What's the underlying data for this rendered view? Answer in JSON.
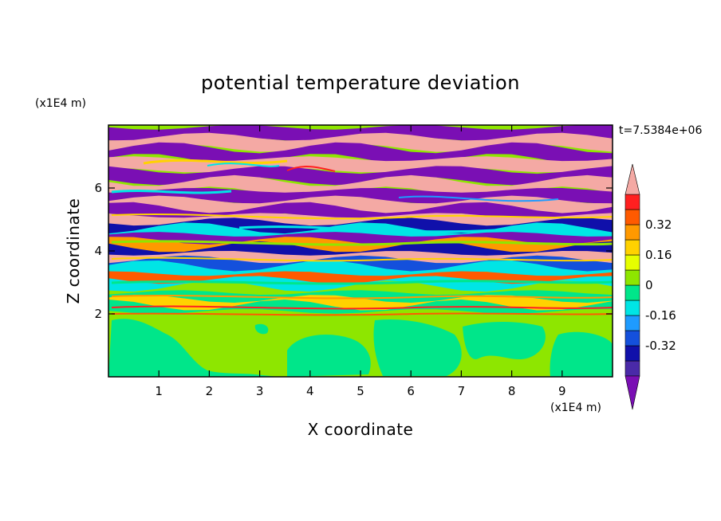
{
  "chart_data": {
    "type": "heatmap",
    "title": "potential temperature deviation",
    "xlabel": "X coordinate",
    "ylabel": "Z coordinate",
    "x_unit": "(x1E4 m)",
    "y_unit": "(x1E4 m)",
    "time_label": "t=7.5384e+06",
    "xlim": [
      0,
      10
    ],
    "ylim": [
      0,
      8
    ],
    "x_ticks": [
      "1",
      "2",
      "3",
      "4",
      "5",
      "6",
      "7",
      "8",
      "9"
    ],
    "y_ticks": [
      "2",
      "4",
      "6"
    ],
    "colorbar": {
      "levels": [
        -0.48,
        -0.4,
        -0.32,
        -0.24,
        -0.16,
        -0.08,
        0,
        0.08,
        0.16,
        0.24,
        0.32,
        0.4,
        0.48
      ],
      "labels": [
        "0.32",
        "0.16",
        "0",
        "-0.16",
        "-0.32"
      ],
      "label_values": [
        0.32,
        0.16,
        0,
        -0.16,
        -0.32
      ],
      "colors_low_to_high": [
        "#7a0fb4",
        "#4a2aa8",
        "#1010aa",
        "#1450dc",
        "#1e9bff",
        "#00e5e5",
        "#00e68a",
        "#8ee600",
        "#e6ff00",
        "#ffd200",
        "#ff9900",
        "#ff5a00",
        "#ff2020",
        "#f4a9a4"
      ]
    },
    "bands": [
      {
        "z": 7.75,
        "color": "#7a0fb4"
      },
      {
        "z": 7.45,
        "color": "#f4a9a4"
      },
      {
        "z": 7.1,
        "color": "#7a0fb4"
      },
      {
        "z": 6.75,
        "color": "#f4a9a4"
      },
      {
        "z": 6.4,
        "color": "#7a0fb4"
      },
      {
        "z": 6.05,
        "color": "#f4a9a4"
      },
      {
        "z": 5.75,
        "color": "#7a0fb4"
      },
      {
        "z": 5.45,
        "color": "#f4a9a4"
      },
      {
        "z": 5.2,
        "color": "#7a0fb4"
      },
      {
        "z": 4.95,
        "color": "#f4a9a4"
      },
      {
        "z": 4.75,
        "color": "#1010aa"
      },
      {
        "z": 4.55,
        "color": "#00e5e5"
      },
      {
        "z": 4.35,
        "color": "#7a0fb4"
      },
      {
        "z": 4.15,
        "color": "#ff9900"
      },
      {
        "z": 3.95,
        "color": "#1010aa"
      },
      {
        "z": 3.75,
        "color": "#f4a9a4"
      },
      {
        "z": 3.55,
        "color": "#1450dc"
      },
      {
        "z": 3.35,
        "color": "#00e5e5"
      },
      {
        "z": 3.1,
        "color": "#ff5a00"
      },
      {
        "z": 2.9,
        "color": "#00e5e5"
      },
      {
        "z": 2.7,
        "color": "#8ee600"
      },
      {
        "z": 2.5,
        "color": "#00e68a"
      },
      {
        "z": 2.3,
        "color": "#ffd200"
      },
      {
        "z": 2.1,
        "color": "#00e68a"
      },
      {
        "z": 1.9,
        "color": "#8ee600"
      }
    ]
  }
}
